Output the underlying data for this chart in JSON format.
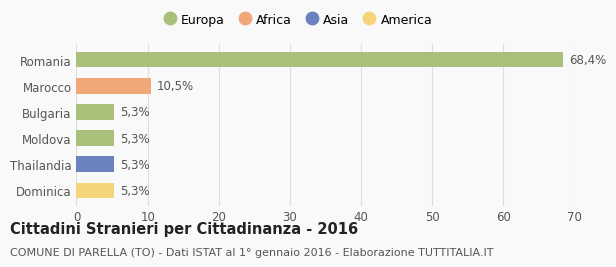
{
  "categories": [
    "Romania",
    "Marocco",
    "Bulgaria",
    "Moldova",
    "Thailandia",
    "Dominica"
  ],
  "values": [
    68.4,
    10.5,
    5.3,
    5.3,
    5.3,
    5.3
  ],
  "labels": [
    "68,4%",
    "10,5%",
    "5,3%",
    "5,3%",
    "5,3%",
    "5,3%"
  ],
  "bar_colors": [
    "#a8c07a",
    "#f0a878",
    "#a8c07a",
    "#a8c07a",
    "#6b82c0",
    "#f5d47a"
  ],
  "legend_entries": [
    {
      "label": "Europa",
      "color": "#a8c07a"
    },
    {
      "label": "Africa",
      "color": "#f0a878"
    },
    {
      "label": "Asia",
      "color": "#6b82c0"
    },
    {
      "label": "America",
      "color": "#f5d47a"
    }
  ],
  "xlim": [
    0,
    70
  ],
  "xticks": [
    0,
    10,
    20,
    30,
    40,
    50,
    60,
    70
  ],
  "title": "Cittadini Stranieri per Cittadinanza - 2016",
  "subtitle": "COMUNE DI PARELLA (TO) - Dati ISTAT al 1° gennaio 2016 - Elaborazione TUTTITALIA.IT",
  "title_fontsize": 10.5,
  "subtitle_fontsize": 8,
  "background_color": "#f9f9f9",
  "grid_color": "#dddddd",
  "bar_height": 0.6,
  "label_fontsize": 8.5,
  "tick_fontsize": 8.5,
  "legend_fontsize": 9
}
